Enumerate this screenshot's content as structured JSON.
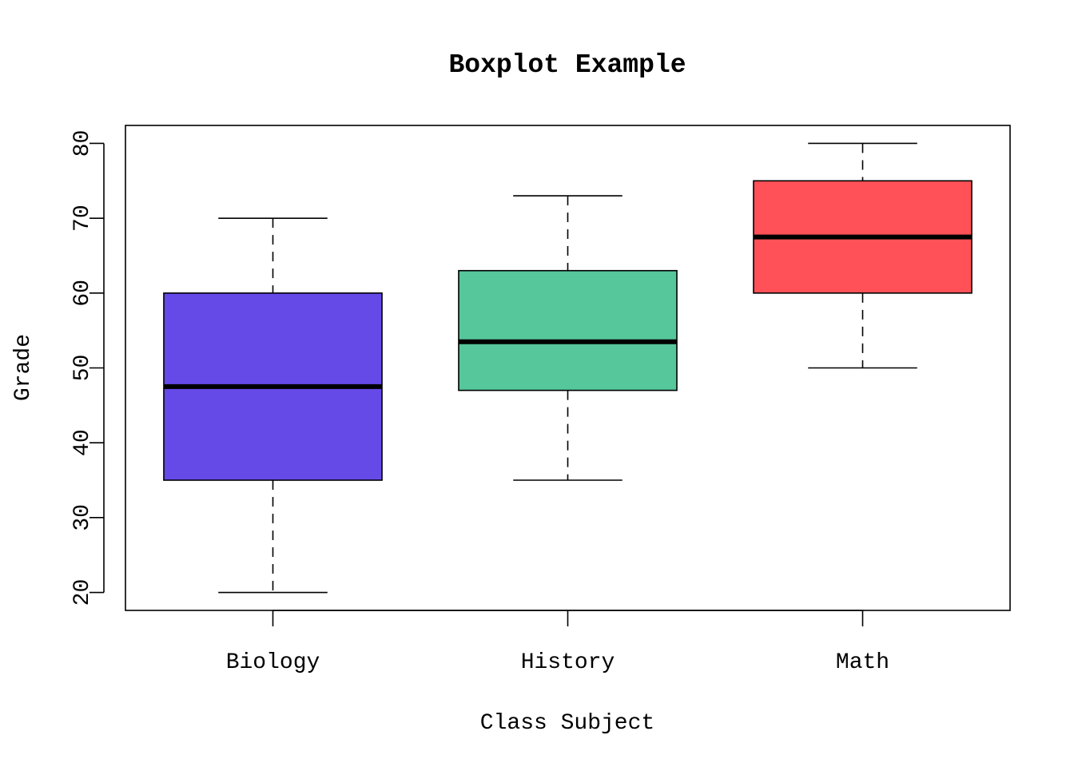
{
  "chart_data": {
    "type": "boxplot",
    "title": "Boxplot Example",
    "xlabel": "Class Subject",
    "ylabel": "Grade",
    "ylim": [
      17.6,
      82.4
    ],
    "yticks": [
      20,
      30,
      40,
      50,
      60,
      70,
      80
    ],
    "ytick_labels": [
      "20",
      "30",
      "40",
      "50",
      "60",
      "70",
      "80"
    ],
    "grid": false,
    "categories": [
      "Biology",
      "History",
      "Math"
    ],
    "boxes": [
      {
        "name": "Biology",
        "min": 20,
        "q1": 35,
        "median": 47.5,
        "q3": 60,
        "max": 70,
        "color": "#664ae8"
      },
      {
        "name": "History",
        "min": 35,
        "q1": 47,
        "median": 53.5,
        "q3": 63,
        "max": 73,
        "color": "#56c69b"
      },
      {
        "name": "Math",
        "min": 50,
        "q1": 60,
        "median": 67.5,
        "q3": 75,
        "max": 80,
        "color": "#ff5157"
      }
    ]
  }
}
